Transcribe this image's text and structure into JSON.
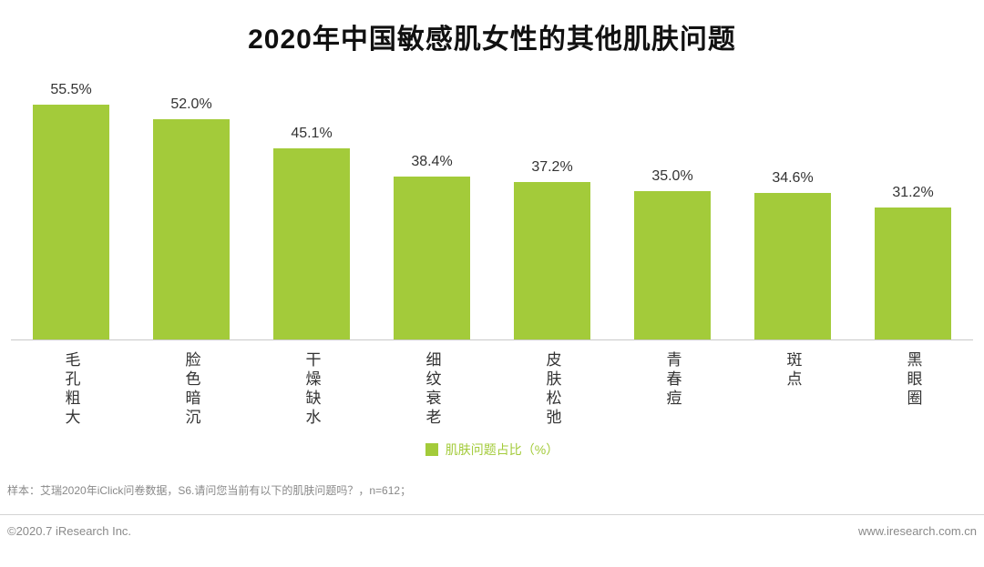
{
  "title": "2020年中国敏感肌女性的其他肌肤问题",
  "chart_data": {
    "type": "bar",
    "title": "2020年中国敏感肌女性的其他肌肤问题",
    "categories": [
      "毛孔粗大",
      "脸色暗沉",
      "干燥缺水",
      "细纹衰老",
      "皮肤松弛",
      "青春痘",
      "斑点",
      "黑眼圈"
    ],
    "values": [
      55.5,
      52.0,
      45.1,
      38.4,
      37.2,
      35.0,
      34.6,
      31.2
    ],
    "value_labels": [
      "55.5%",
      "52.0%",
      "45.1%",
      "38.4%",
      "37.2%",
      "35.0%",
      "34.6%",
      "31.2%"
    ],
    "legend": "肌肤问题占比（%）",
    "legend_position": "bottom",
    "bar_color": "#a3cb3a",
    "ylim": [
      0,
      60
    ],
    "grid": false,
    "xlabel": "",
    "ylabel": ""
  },
  "footer": {
    "note": "样本：艾瑞2020年iClick问卷数据，S6.请问您当前有以下的肌肤问题吗？，n=612；",
    "copyright": "©2020.7 iResearch Inc.",
    "website": "www.iresearch.com.cn"
  }
}
